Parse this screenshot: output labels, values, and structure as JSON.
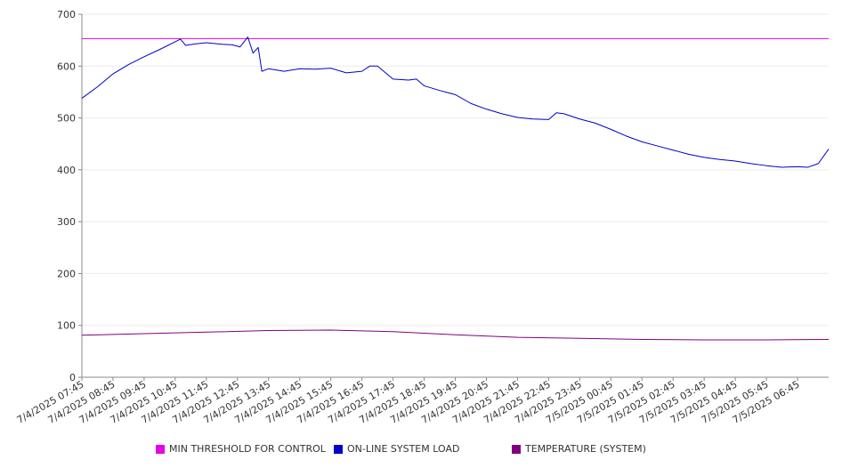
{
  "chart_data": {
    "type": "line",
    "title": "",
    "xlabel": "",
    "ylabel": "",
    "ylim": [
      0,
      700
    ],
    "yticks": [
      0,
      100,
      200,
      300,
      400,
      500,
      600,
      700
    ],
    "xlim": [
      "7/4/2025 07:45",
      "7/5/2025 07:45"
    ],
    "x_tick_labels": [
      "7/4/2025 07:45",
      "7/4/2025 08:45",
      "7/4/2025 09:45",
      "7/4/2025 10:45",
      "7/4/2025 11:45",
      "7/4/2025 12:45",
      "7/4/2025 13:45",
      "7/4/2025 14:45",
      "7/4/2025 15:45",
      "7/4/2025 16:45",
      "7/4/2025 17:45",
      "7/4/2025 18:45",
      "7/4/2025 19:45",
      "7/4/2025 20:45",
      "7/4/2025 21:45",
      "7/4/2025 22:45",
      "7/4/2025 23:45",
      "7/5/2025 00:45",
      "7/5/2025 01:45",
      "7/5/2025 02:45",
      "7/5/2025 03:45",
      "7/5/2025 04:45",
      "7/5/2025 05:45",
      "7/5/2025 06:45"
    ],
    "grid": true,
    "legend_position": "bottom",
    "series": [
      {
        "name": "MIN THRESHOLD FOR CONTROL",
        "color": "#e600e6",
        "points": [
          [
            "7/4/2025 07:45",
            653
          ],
          [
            "7/5/2025 07:45",
            653
          ]
        ]
      },
      {
        "name": "ON-LINE SYSTEM LOAD",
        "color": "#0000cc",
        "points": [
          [
            "7/4/2025 07:45",
            538
          ],
          [
            "7/4/2025 08:15",
            560
          ],
          [
            "7/4/2025 08:45",
            585
          ],
          [
            "7/4/2025 09:15",
            603
          ],
          [
            "7/4/2025 09:45",
            618
          ],
          [
            "7/4/2025 10:15",
            632
          ],
          [
            "7/4/2025 10:45",
            647
          ],
          [
            "7/4/2025 10:55",
            652
          ],
          [
            "7/4/2025 11:05",
            640
          ],
          [
            "7/4/2025 11:25",
            643
          ],
          [
            "7/4/2025 11:45",
            645
          ],
          [
            "7/4/2025 12:15",
            642
          ],
          [
            "7/4/2025 12:35",
            641
          ],
          [
            "7/4/2025 12:50",
            637
          ],
          [
            "7/4/2025 13:05",
            656
          ],
          [
            "7/4/2025 13:15",
            625
          ],
          [
            "7/4/2025 13:25",
            636
          ],
          [
            "7/4/2025 13:32",
            590
          ],
          [
            "7/4/2025 13:45",
            595
          ],
          [
            "7/4/2025 14:15",
            590
          ],
          [
            "7/4/2025 14:45",
            595
          ],
          [
            "7/4/2025 15:15",
            594
          ],
          [
            "7/4/2025 15:45",
            596
          ],
          [
            "7/4/2025 16:15",
            587
          ],
          [
            "7/4/2025 16:45",
            590
          ],
          [
            "7/4/2025 17:00",
            600
          ],
          [
            "7/4/2025 17:15",
            600
          ],
          [
            "7/4/2025 17:45",
            575
          ],
          [
            "7/4/2025 18:15",
            573
          ],
          [
            "7/4/2025 18:30",
            575
          ],
          [
            "7/4/2025 18:45",
            562
          ],
          [
            "7/4/2025 19:15",
            553
          ],
          [
            "7/4/2025 19:45",
            545
          ],
          [
            "7/4/2025 20:15",
            528
          ],
          [
            "7/4/2025 20:45",
            517
          ],
          [
            "7/4/2025 21:15",
            508
          ],
          [
            "7/4/2025 21:45",
            501
          ],
          [
            "7/4/2025 22:15",
            498
          ],
          [
            "7/4/2025 22:45",
            497
          ],
          [
            "7/4/2025 23:00",
            510
          ],
          [
            "7/4/2025 23:15",
            508
          ],
          [
            "7/4/2025 23:45",
            498
          ],
          [
            "7/5/2025 00:15",
            490
          ],
          [
            "7/5/2025 00:45",
            478
          ],
          [
            "7/5/2025 01:15",
            465
          ],
          [
            "7/5/2025 01:45",
            454
          ],
          [
            "7/5/2025 02:15",
            446
          ],
          [
            "7/5/2025 02:45",
            438
          ],
          [
            "7/5/2025 03:15",
            430
          ],
          [
            "7/5/2025 03:45",
            424
          ],
          [
            "7/5/2025 04:15",
            420
          ],
          [
            "7/5/2025 04:45",
            417
          ],
          [
            "7/5/2025 05:15",
            412
          ],
          [
            "7/5/2025 05:45",
            408
          ],
          [
            "7/5/2025 06:15",
            405
          ],
          [
            "7/5/2025 06:45",
            406
          ],
          [
            "7/5/2025 07:05",
            405
          ],
          [
            "7/5/2025 07:25",
            412
          ],
          [
            "7/5/2025 07:45",
            440
          ]
        ]
      },
      {
        "name": "TEMPERATURE (SYSTEM)",
        "color": "#800080",
        "points": [
          [
            "7/4/2025 07:45",
            81
          ],
          [
            "7/4/2025 09:45",
            84
          ],
          [
            "7/4/2025 11:45",
            87
          ],
          [
            "7/4/2025 13:45",
            90
          ],
          [
            "7/4/2025 15:45",
            91
          ],
          [
            "7/4/2025 17:45",
            88
          ],
          [
            "7/4/2025 19:45",
            82
          ],
          [
            "7/4/2025 21:45",
            77
          ],
          [
            "7/4/2025 23:45",
            75
          ],
          [
            "7/5/2025 01:45",
            73
          ],
          [
            "7/5/2025 03:45",
            72
          ],
          [
            "7/5/2025 05:45",
            72
          ],
          [
            "7/5/2025 07:45",
            73
          ]
        ]
      }
    ]
  }
}
